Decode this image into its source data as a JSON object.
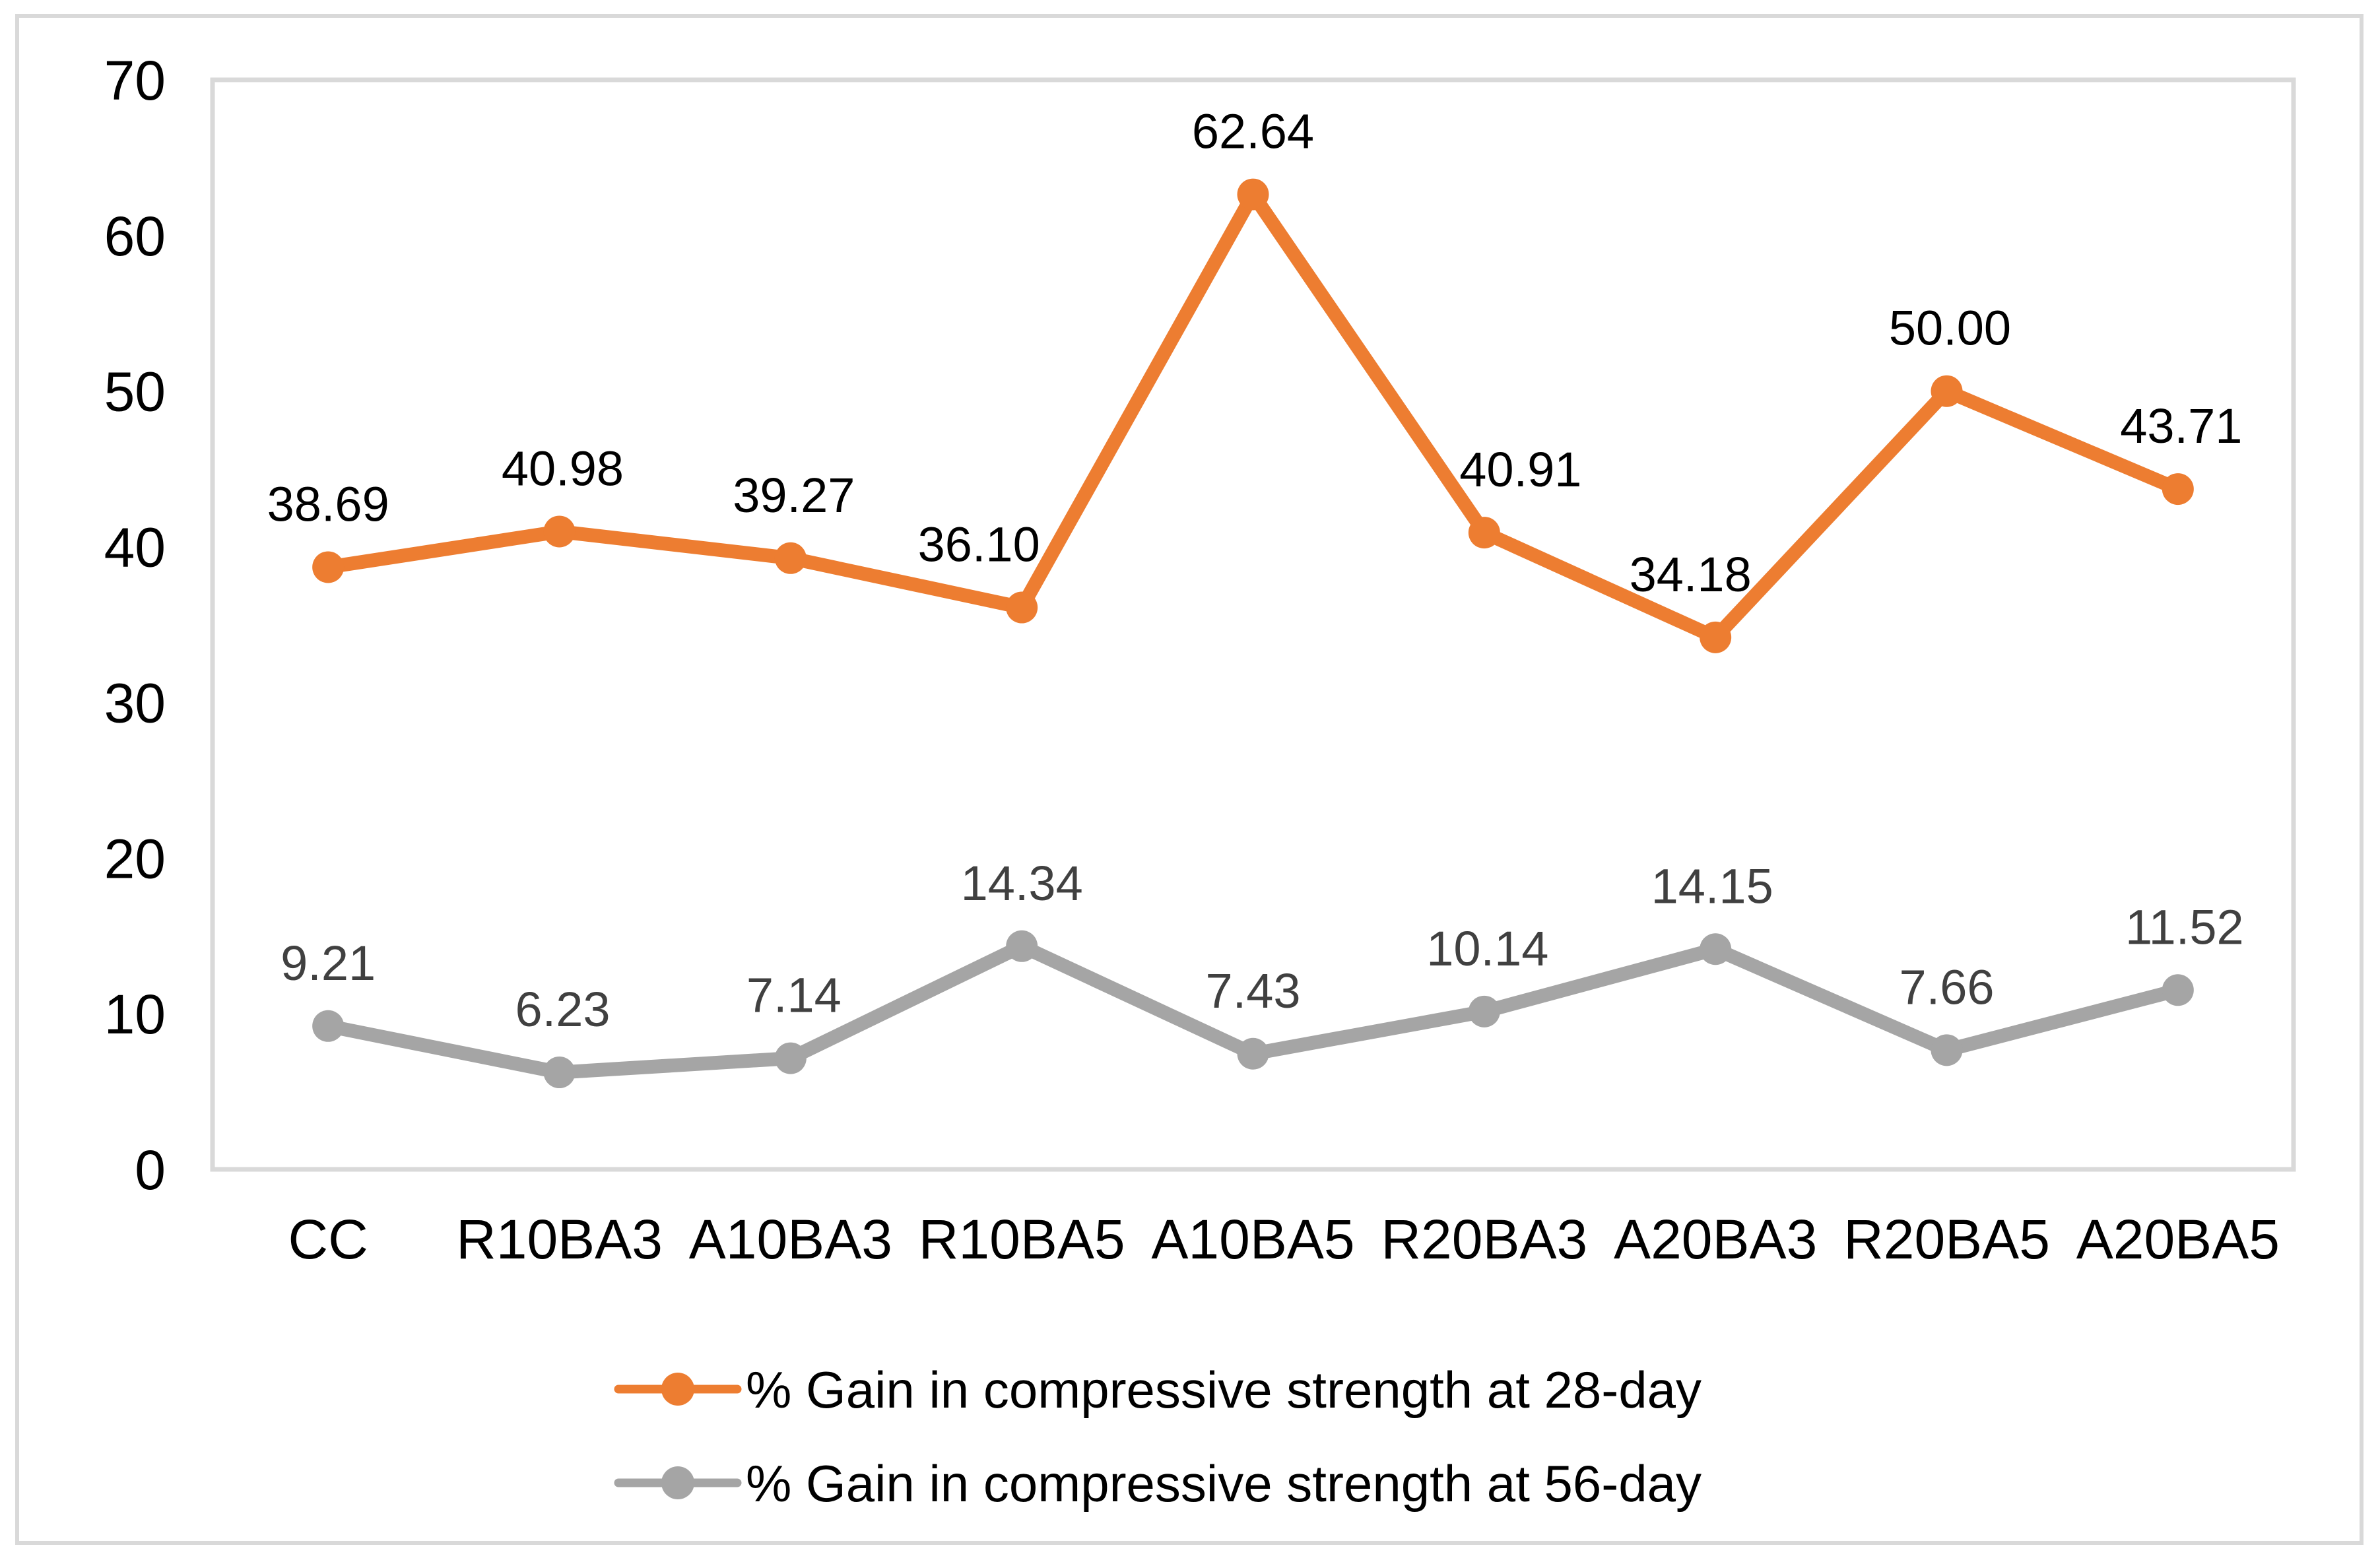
{
  "chart_data": {
    "type": "line",
    "title": "",
    "xlabel": "",
    "ylabel": "",
    "categories": [
      "CC",
      "R10BA3",
      "A10BA3",
      "R10BA5",
      "A10BA5",
      "R20BA3",
      "A20BA3",
      "R20BA5",
      "A20BA5"
    ],
    "series": [
      {
        "name": "% Gain in compressive strength at 28-day",
        "color": "#ED7D31",
        "label_color": "#000000",
        "values": [
          38.69,
          40.98,
          39.27,
          36.1,
          62.64,
          40.91,
          34.18,
          50.0,
          43.71
        ],
        "labels": [
          "38.69",
          "40.98",
          "39.27",
          "36.10",
          "62.64",
          "40.91",
          "34.18",
          "50.00",
          "43.71"
        ],
        "label_dx": [
          0,
          5,
          5,
          -65,
          0,
          55,
          -38,
          5,
          5
        ]
      },
      {
        "name": "% Gain in compressive strength at 56-day",
        "color": "#A5A5A5",
        "label_color": "#404040",
        "values": [
          9.21,
          6.23,
          7.14,
          14.34,
          7.43,
          10.14,
          14.15,
          7.66,
          11.52
        ],
        "labels": [
          "9.21",
          "6.23",
          "7.14",
          "14.34",
          "7.43",
          "10.14",
          "14.15",
          "7.66",
          "11.52"
        ],
        "label_dx": [
          0,
          5,
          5,
          0,
          0,
          5,
          -5,
          0,
          10
        ]
      }
    ],
    "ylim": [
      0,
      70
    ],
    "ytick_step": 10,
    "yticks": [
      0,
      10,
      20,
      30,
      40,
      50,
      60,
      70
    ],
    "grid": false,
    "legend_position": "bottom",
    "axis_line_color": "#D9D9D9",
    "figure_border_color": "#D9D9D9",
    "tick_label_color": "#000000",
    "background": "#FFFFFF"
  }
}
